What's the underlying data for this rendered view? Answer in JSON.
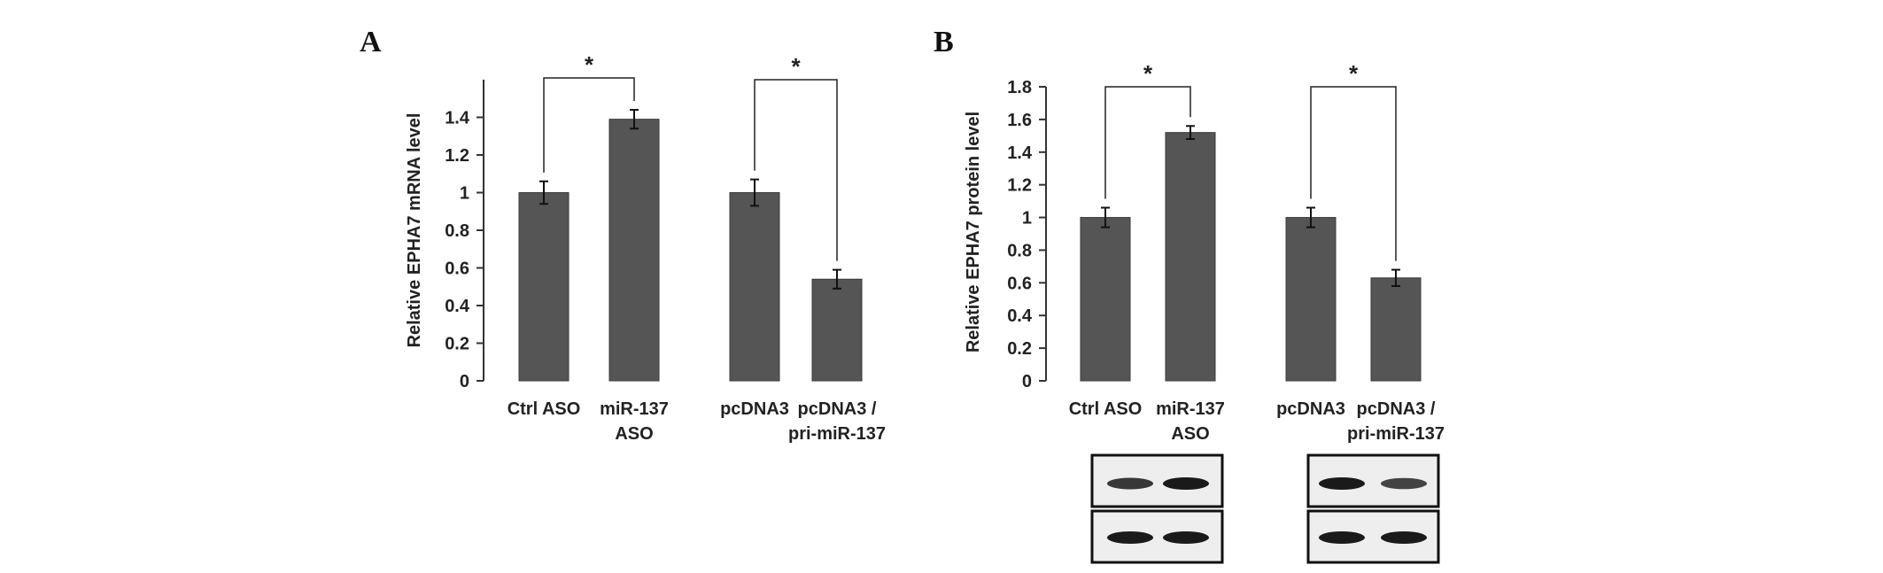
{
  "panels": {
    "A": {
      "letter": "A"
    },
    "B": {
      "letter": "B"
    }
  },
  "colors": {
    "bar": "#555555",
    "axis": "#333333",
    "blot_bg": "#eeeeee",
    "band": "#1a1a1a"
  },
  "chart_data": [
    {
      "type": "bar",
      "panel": "A",
      "ylabel": "Relative EPHA7 mRNA level",
      "ylim": [
        0,
        1.6
      ],
      "yticks": [
        "0",
        "0.2",
        "0.4",
        "0.6",
        "0.8",
        "1",
        "1.2",
        "1.4"
      ],
      "categories": [
        [
          "Ctrl ASO"
        ],
        [
          "miR-137",
          "ASO"
        ],
        [
          "pcDNA3"
        ],
        [
          "pcDNA3 /",
          "pri-miR-137"
        ]
      ],
      "values": [
        1.0,
        1.39,
        1.0,
        0.54
      ],
      "errors": [
        0.06,
        0.05,
        0.07,
        0.05
      ],
      "significance": [
        {
          "pair": [
            0,
            1
          ],
          "label": "*"
        },
        {
          "pair": [
            2,
            3
          ],
          "label": "*"
        }
      ]
    },
    {
      "type": "bar",
      "panel": "B",
      "ylabel": "Relative EPHA7 protein level",
      "ylim": [
        0,
        1.8
      ],
      "yticks": [
        "0",
        "0.2",
        "0.4",
        "0.6",
        "0.8",
        "1",
        "1.2",
        "1.4",
        "1.6",
        "1.8"
      ],
      "categories": [
        [
          "Ctrl ASO"
        ],
        [
          "miR-137",
          "ASO"
        ],
        [
          "pcDNA3"
        ],
        [
          "pcDNA3 /",
          "pri-miR-137"
        ]
      ],
      "values": [
        1.0,
        1.52,
        1.0,
        0.63
      ],
      "errors": [
        0.06,
        0.04,
        0.06,
        0.05
      ],
      "significance": [
        {
          "pair": [
            0,
            1
          ],
          "label": "*"
        },
        {
          "pair": [
            2,
            3
          ],
          "label": "*"
        }
      ],
      "blots": {
        "top_band_intensity": [
          0.75,
          1.0,
          1.0,
          0.65
        ],
        "bottom_band_intensity": [
          1.0,
          1.0,
          1.0,
          1.0
        ]
      }
    }
  ]
}
